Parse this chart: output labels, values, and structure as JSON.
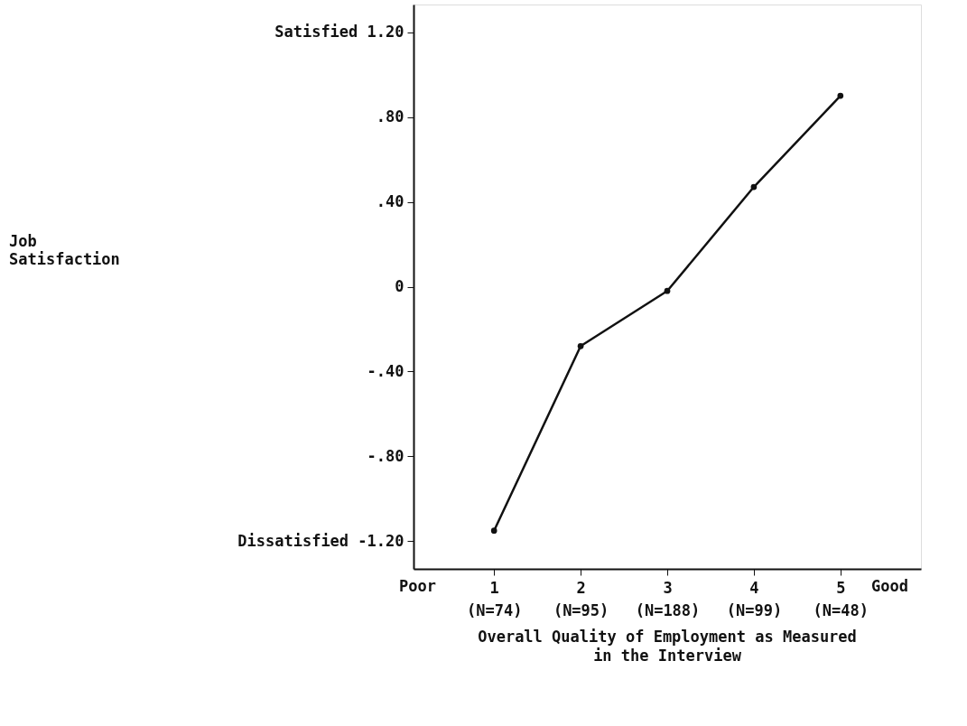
{
  "chart_data": {
    "type": "line",
    "categories": [
      "1\n(N=74)",
      "2\n(N=95)",
      "3\n(N=188)",
      "4\n(N=99)",
      "5\n(N=48)"
    ],
    "series": [
      {
        "color": "#111111",
        "values": [
          -1.15,
          -0.28,
          -0.02,
          0.47,
          0.9
        ]
      }
    ],
    "xlabel": "Overall Quality of Employment as Measured in the Interview",
    "ylim": [
      -1.33,
      1.33
    ],
    "yticks": [
      {
        "value": 1.2,
        "label": "Satisfied 1.20"
      },
      {
        "value": 0.8,
        "label": ".80"
      },
      {
        "value": 0.4,
        "label": ".40"
      },
      0,
      {
        "value": -0.4,
        "label": "-.40"
      },
      {
        "value": -0.8,
        "label": "-.80"
      },
      {
        "value": -1.2,
        "label": "Dissatisfied -1.20"
      }
    ],
    "annotations": [
      "Poor",
      "Good",
      "Job Satisfaction"
    ],
    "grid": false,
    "marker": "circle",
    "line_style": "solid"
  }
}
